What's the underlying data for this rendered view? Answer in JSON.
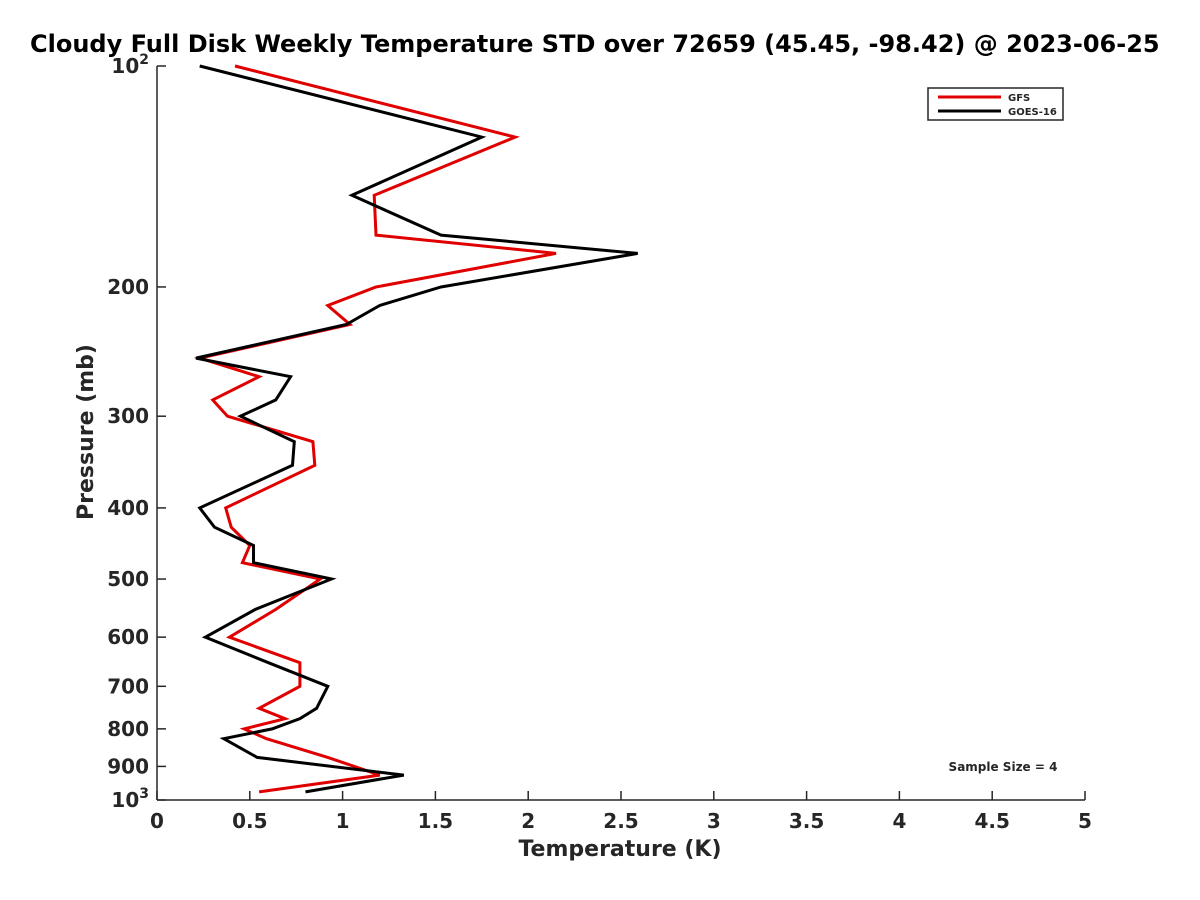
{
  "chart_data": {
    "type": "line",
    "title": "Cloudy Full Disk Weekly Temperature STD over 72659 (45.45, -98.42) @ 2023-06-25",
    "xlabel": "Temperature (K)",
    "ylabel": "Pressure (mb)",
    "xlim": [
      0,
      5
    ],
    "ylim": [
      100,
      1000
    ],
    "y_scale": "log",
    "y_reversed": true,
    "x_ticks": [
      "0",
      "0.5",
      "1",
      "1.5",
      "2",
      "2.5",
      "3",
      "3.5",
      "4",
      "4.5",
      "5"
    ],
    "y_ticks": [
      {
        "value": 100,
        "base": "10",
        "exp": "2"
      },
      {
        "value": 200,
        "label": "200"
      },
      {
        "value": 300,
        "label": "300"
      },
      {
        "value": 400,
        "label": "400"
      },
      {
        "value": 500,
        "label": "500"
      },
      {
        "value": 600,
        "label": "600"
      },
      {
        "value": 700,
        "label": "700"
      },
      {
        "value": 800,
        "label": "800"
      },
      {
        "value": 900,
        "label": "900"
      },
      {
        "value": 1000,
        "base": "10",
        "exp": "3"
      }
    ],
    "legend_position": "top-right",
    "annotation": "Sample Size = 4",
    "series": [
      {
        "name": "GFS",
        "color": "#e00000",
        "points": [
          [
            0.42,
            100
          ],
          [
            1.93,
            125
          ],
          [
            1.17,
            150
          ],
          [
            1.18,
            170
          ],
          [
            2.15,
            180
          ],
          [
            1.18,
            200
          ],
          [
            0.92,
            212
          ],
          [
            1.04,
            225
          ],
          [
            0.23,
            250
          ],
          [
            0.55,
            265
          ],
          [
            0.3,
            285
          ],
          [
            0.38,
            300
          ],
          [
            0.84,
            325
          ],
          [
            0.85,
            350
          ],
          [
            0.37,
            400
          ],
          [
            0.4,
            425
          ],
          [
            0.5,
            450
          ],
          [
            0.46,
            475
          ],
          [
            0.88,
            500
          ],
          [
            0.64,
            550
          ],
          [
            0.39,
            600
          ],
          [
            0.77,
            650
          ],
          [
            0.77,
            700
          ],
          [
            0.55,
            750
          ],
          [
            0.69,
            775
          ],
          [
            0.47,
            800
          ],
          [
            0.59,
            825
          ],
          [
            0.92,
            875
          ],
          [
            1.2,
            925
          ],
          [
            0.55,
            975
          ]
        ]
      },
      {
        "name": "GOES-16",
        "color": "#000000",
        "points": [
          [
            0.23,
            100
          ],
          [
            1.75,
            125
          ],
          [
            1.05,
            150
          ],
          [
            1.53,
            170
          ],
          [
            2.59,
            180
          ],
          [
            1.53,
            200
          ],
          [
            1.2,
            212
          ],
          [
            1.02,
            225
          ],
          [
            0.21,
            250
          ],
          [
            0.72,
            265
          ],
          [
            0.64,
            285
          ],
          [
            0.45,
            300
          ],
          [
            0.74,
            325
          ],
          [
            0.73,
            350
          ],
          [
            0.23,
            400
          ],
          [
            0.31,
            425
          ],
          [
            0.52,
            450
          ],
          [
            0.52,
            475
          ],
          [
            0.94,
            500
          ],
          [
            0.53,
            550
          ],
          [
            0.26,
            600
          ],
          [
            0.6,
            650
          ],
          [
            0.92,
            700
          ],
          [
            0.86,
            750
          ],
          [
            0.77,
            775
          ],
          [
            0.62,
            800
          ],
          [
            0.36,
            825
          ],
          [
            0.54,
            875
          ],
          [
            1.33,
            925
          ],
          [
            0.8,
            975
          ]
        ]
      }
    ]
  }
}
